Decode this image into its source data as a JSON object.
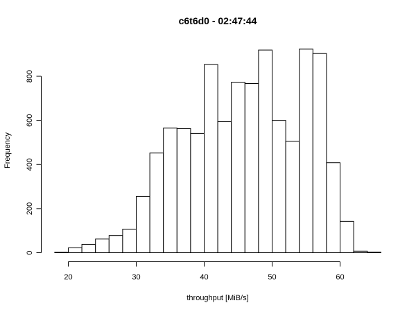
{
  "chart_data": {
    "type": "bar",
    "title": "c6t6d0 - 02:47:44",
    "xlabel": "throughput [MiB/s]",
    "ylabel": "Frequency",
    "bin_width": 2,
    "bins": [
      {
        "x0": 18,
        "x1": 20,
        "count": 2
      },
      {
        "x0": 20,
        "x1": 22,
        "count": 22
      },
      {
        "x0": 22,
        "x1": 24,
        "count": 38
      },
      {
        "x0": 24,
        "x1": 26,
        "count": 62
      },
      {
        "x0": 26,
        "x1": 28,
        "count": 78
      },
      {
        "x0": 28,
        "x1": 30,
        "count": 107
      },
      {
        "x0": 30,
        "x1": 32,
        "count": 255
      },
      {
        "x0": 32,
        "x1": 34,
        "count": 452
      },
      {
        "x0": 34,
        "x1": 36,
        "count": 565
      },
      {
        "x0": 36,
        "x1": 38,
        "count": 563
      },
      {
        "x0": 38,
        "x1": 40,
        "count": 541
      },
      {
        "x0": 40,
        "x1": 42,
        "count": 853
      },
      {
        "x0": 42,
        "x1": 44,
        "count": 594
      },
      {
        "x0": 44,
        "x1": 46,
        "count": 773
      },
      {
        "x0": 46,
        "x1": 48,
        "count": 767
      },
      {
        "x0": 48,
        "x1": 50,
        "count": 919
      },
      {
        "x0": 50,
        "x1": 52,
        "count": 600
      },
      {
        "x0": 52,
        "x1": 54,
        "count": 505
      },
      {
        "x0": 54,
        "x1": 56,
        "count": 923
      },
      {
        "x0": 56,
        "x1": 58,
        "count": 903
      },
      {
        "x0": 58,
        "x1": 60,
        "count": 408
      },
      {
        "x0": 60,
        "x1": 62,
        "count": 142
      },
      {
        "x0": 62,
        "x1": 64,
        "count": 7
      },
      {
        "x0": 64,
        "x1": 66,
        "count": 3
      }
    ],
    "x_ticks": [
      20,
      30,
      40,
      50,
      60
    ],
    "x_tick_labels": [
      "20",
      "30",
      "40",
      "50",
      "60"
    ],
    "y_ticks": [
      0,
      200,
      400,
      600,
      800
    ],
    "y_tick_labels": [
      "0",
      "200",
      "400",
      "600",
      "800"
    ],
    "xlim": [
      18,
      66
    ],
    "ylim": [
      0,
      960
    ],
    "grid": false,
    "legend": "none"
  }
}
